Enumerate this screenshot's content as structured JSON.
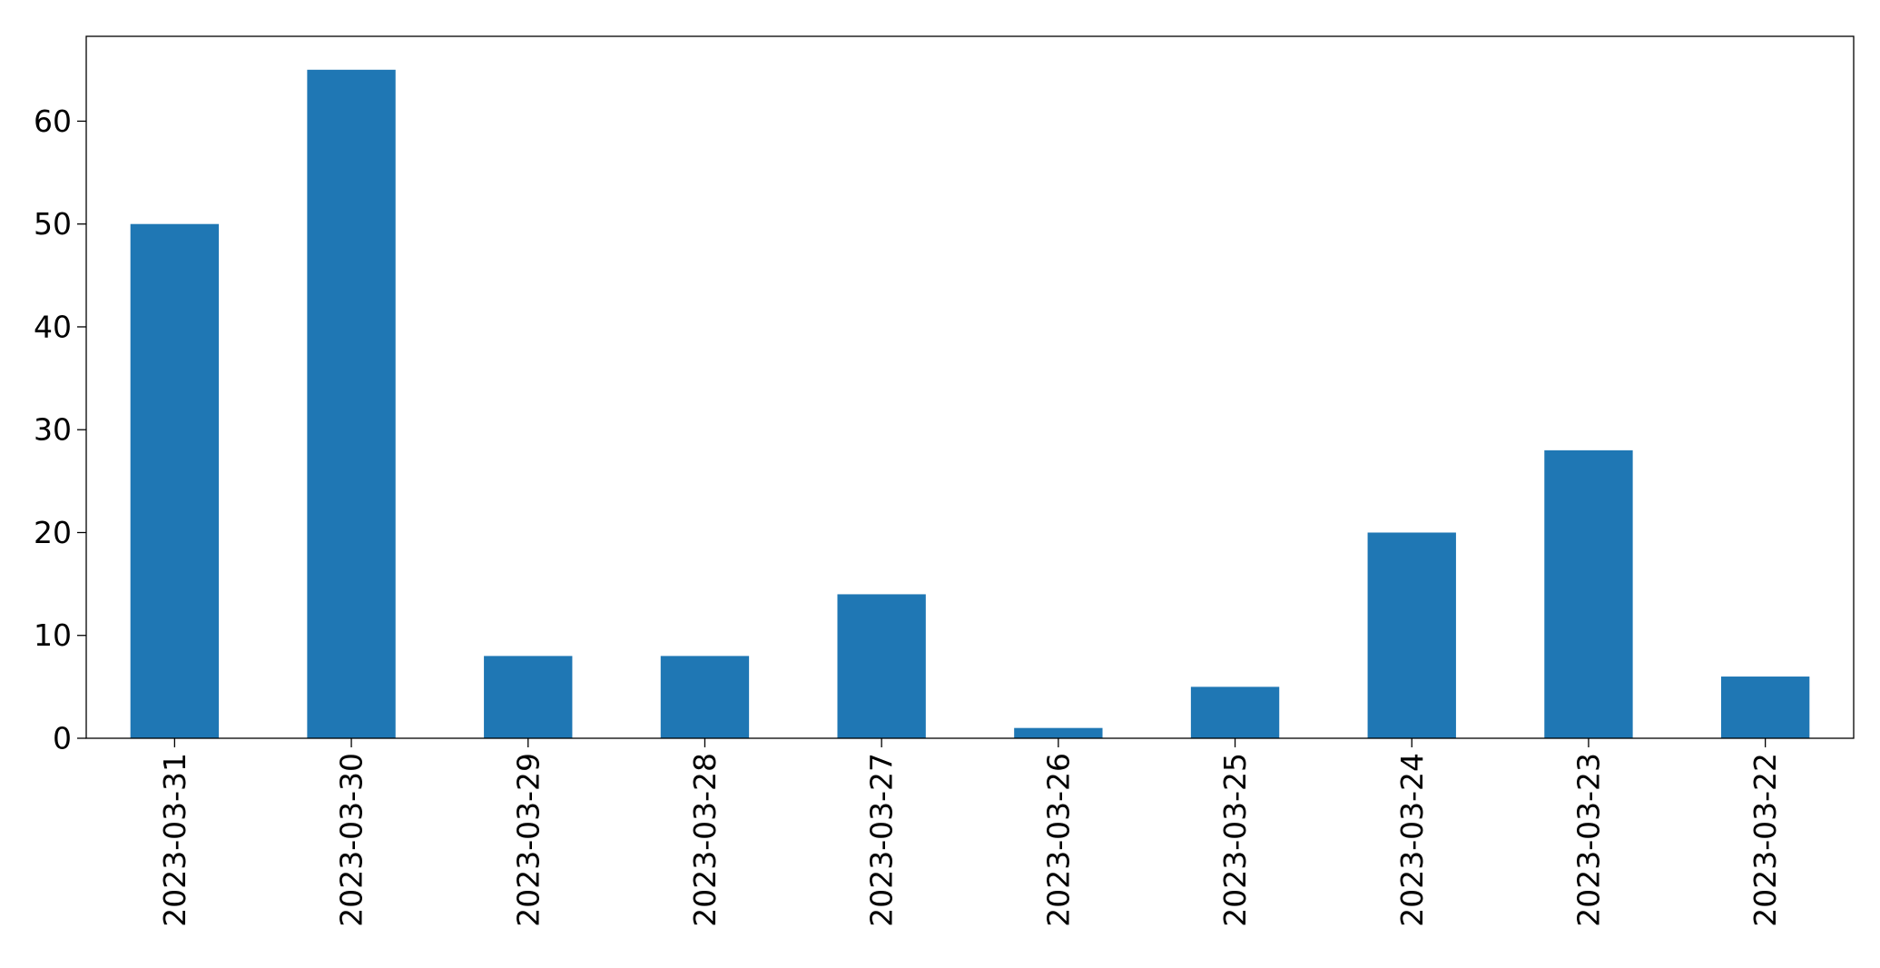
{
  "chart_data": {
    "type": "bar",
    "categories": [
      "2023-03-31",
      "2023-03-30",
      "2023-03-29",
      "2023-03-28",
      "2023-03-27",
      "2023-03-26",
      "2023-03-25",
      "2023-03-24",
      "2023-03-23",
      "2023-03-22"
    ],
    "values": [
      50,
      65,
      8,
      8,
      14,
      1,
      5,
      20,
      28,
      6
    ],
    "title": "",
    "xlabel": "",
    "ylabel": "",
    "ylim": [
      0,
      68.25
    ],
    "yticks": [
      0,
      10,
      20,
      30,
      40,
      50,
      60
    ],
    "grid": false,
    "legend": "none",
    "bar_color": "#1f77b4",
    "axis_color": "#000000"
  }
}
